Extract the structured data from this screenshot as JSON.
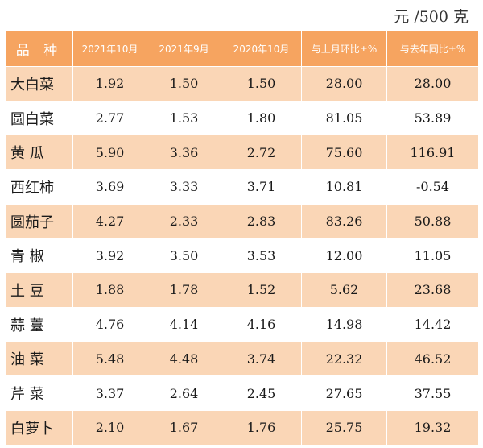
{
  "unit_label": "元 /500 克",
  "table": {
    "headers": [
      "品 种",
      "2021年10月",
      "2021年9月",
      "2020年10月",
      "与上月环比±%",
      "与去年同比±%"
    ],
    "rows": [
      [
        "大白菜",
        "1.92",
        "1.50",
        "1.50",
        "28.00",
        "28.00"
      ],
      [
        "圆白菜",
        "2.77",
        "1.53",
        "1.80",
        "81.05",
        "53.89"
      ],
      [
        "黄 瓜",
        "5.90",
        "3.36",
        "2.72",
        "75.60",
        "116.91"
      ],
      [
        "西红柿",
        "3.69",
        "3.33",
        "3.71",
        "10.81",
        "-0.54"
      ],
      [
        "圆茄子",
        "4.27",
        "2.33",
        "2.83",
        "83.26",
        "50.88"
      ],
      [
        "青 椒",
        "3.92",
        "3.50",
        "3.53",
        "12.00",
        "11.05"
      ],
      [
        "土 豆",
        "1.88",
        "1.78",
        "1.52",
        "5.62",
        "23.68"
      ],
      [
        "蒜 薹",
        "4.76",
        "4.14",
        "4.16",
        "14.98",
        "14.42"
      ],
      [
        "油 菜",
        "5.48",
        "4.48",
        "3.74",
        "22.32",
        "46.52"
      ],
      [
        "芹 菜",
        "3.37",
        "2.64",
        "2.45",
        "27.65",
        "37.55"
      ],
      [
        "白萝卜",
        "2.10",
        "1.67",
        "1.76",
        "25.75",
        "19.32"
      ]
    ]
  },
  "colors": {
    "header_bg": "#f6a460",
    "band_bg": "#fad6b6",
    "plain_bg": "#ffffff"
  }
}
